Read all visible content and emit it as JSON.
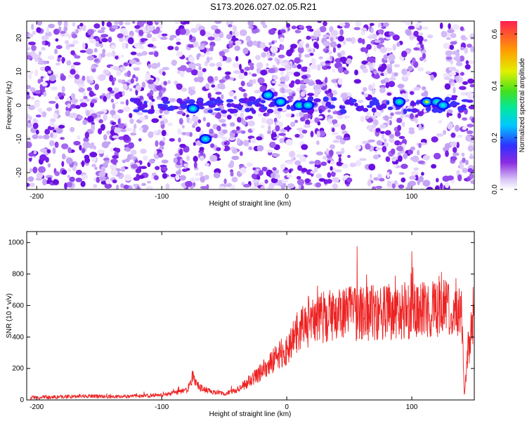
{
  "title": "S173.2026.027.02.05.R21",
  "colors": {
    "snr_line": "#ee2222",
    "axis": "#000000",
    "spectrogram_base": "#ffffff",
    "spectrogram_low": "#dcc8f8",
    "spectrogram_mid": "#7a20e8",
    "spectrogram_band": "#0030ff",
    "spectrogram_peak": "#00e0c0"
  },
  "chart_data": [
    {
      "type": "heatmap",
      "name": "spectrogram",
      "xlabel": "Height of straight line (km)",
      "ylabel": "Frequency (Hz)",
      "xlim": [
        -208,
        150
      ],
      "ylim": [
        -25,
        25
      ],
      "xticks": [
        -200,
        -100,
        0,
        100
      ],
      "yticks": [
        -20,
        -10,
        0,
        10,
        20
      ],
      "band_frequency_hz": 0,
      "hotspots": [
        {
          "x": -75,
          "y": -1,
          "v": 0.28
        },
        {
          "x": -65,
          "y": -10,
          "v": 0.22
        },
        {
          "x": 10,
          "y": 0,
          "v": 0.33
        },
        {
          "x": 17,
          "y": 0,
          "v": 0.3
        },
        {
          "x": 90,
          "y": 1,
          "v": 0.35
        },
        {
          "x": 112,
          "y": 1,
          "v": 0.45
        },
        {
          "x": 120,
          "y": 1,
          "v": 0.4
        },
        {
          "x": 125,
          "y": 0,
          "v": 0.3
        },
        {
          "x": -15,
          "y": 3,
          "v": 0.22
        },
        {
          "x": -5,
          "y": 1,
          "v": 0.22
        }
      ],
      "colorbar": {
        "label": "Normalized spectral amplitude",
        "range": [
          0,
          0.65
        ],
        "ticks": [
          "0.0",
          "0.2",
          "0.4",
          "0.6"
        ]
      }
    },
    {
      "type": "line",
      "name": "snr",
      "xlabel": "Height of straight line (km)",
      "ylabel": "SNR (10 * v/v)",
      "xlim": [
        -208,
        150
      ],
      "ylim": [
        0,
        1070
      ],
      "xticks": [
        -200,
        -100,
        0,
        100
      ],
      "yticks": [
        0,
        200,
        400,
        600,
        800,
        1000
      ],
      "series": [
        {
          "name": "SNR",
          "x": [
            -205,
            -180,
            -160,
            -140,
            -120,
            -100,
            -90,
            -80,
            -75,
            -70,
            -60,
            -50,
            -40,
            -30,
            -20,
            -10,
            0,
            5,
            10,
            20,
            30,
            40,
            50,
            60,
            70,
            80,
            90,
            100,
            110,
            120,
            130,
            135,
            140,
            142,
            145,
            150
          ],
          "y": [
            15,
            20,
            25,
            20,
            25,
            30,
            45,
            60,
            140,
            80,
            50,
            40,
            60,
            120,
            180,
            260,
            320,
            400,
            440,
            480,
            530,
            540,
            545,
            550,
            555,
            560,
            560,
            565,
            570,
            575,
            580,
            600,
            550,
            30,
            300,
            500
          ]
        }
      ]
    }
  ]
}
